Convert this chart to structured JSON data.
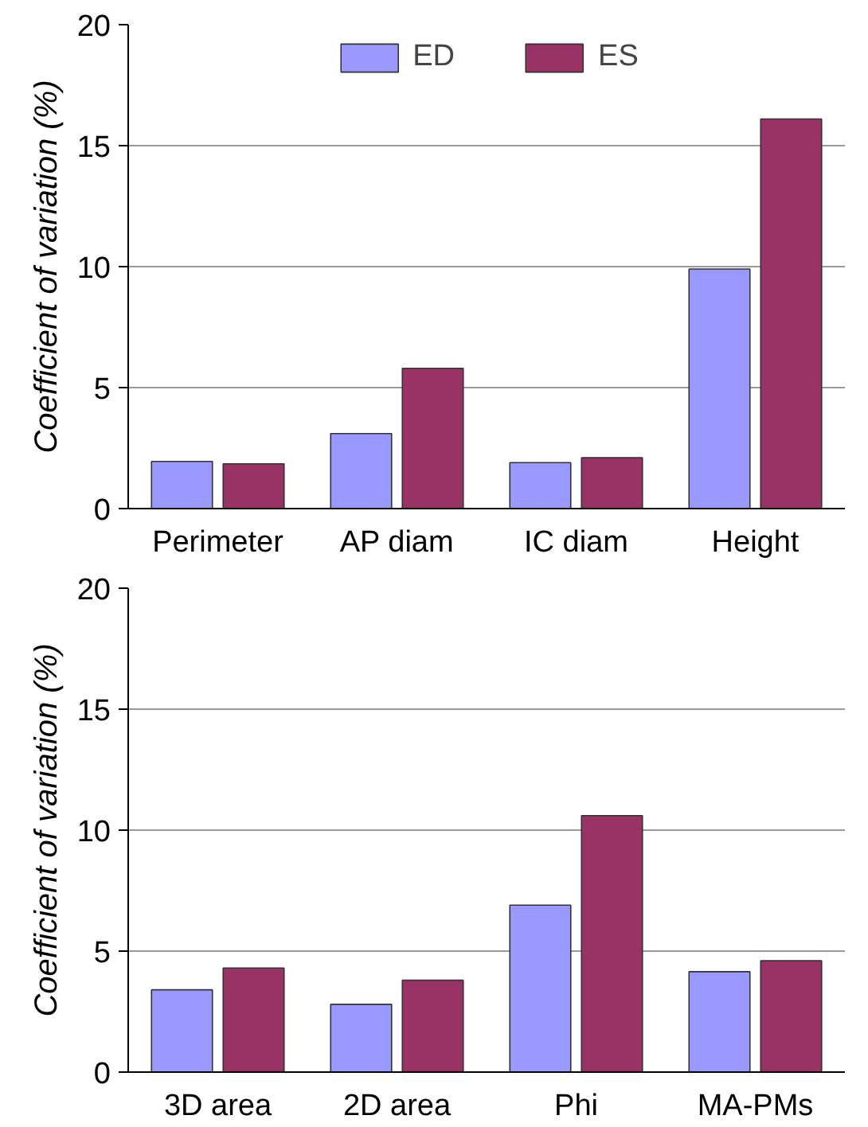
{
  "chart_data": [
    {
      "type": "bar",
      "ylabel": "Coefficient of variation (%)",
      "categories": [
        "Perimeter",
        "AP diam",
        "IC diam",
        "Height"
      ],
      "series": [
        {
          "name": "ED",
          "color": "#9999ff",
          "values": [
            1.95,
            3.1,
            1.9,
            9.9
          ]
        },
        {
          "name": "ES",
          "color": "#993366",
          "values": [
            1.85,
            5.8,
            2.1,
            16.1
          ]
        }
      ],
      "ylim": [
        0,
        20
      ],
      "yticks": [
        0,
        5,
        10,
        15,
        20
      ],
      "grid": "y",
      "legend": "top"
    },
    {
      "type": "bar",
      "ylabel": "Coefficient of variation (%)",
      "categories": [
        "3D area",
        "2D area",
        "Phi",
        "MA-PMs"
      ],
      "series": [
        {
          "color": "#9999ff",
          "values": [
            3.4,
            2.8,
            6.9,
            4.15
          ]
        },
        {
          "color": "#993366",
          "values": [
            4.3,
            3.8,
            10.6,
            4.6
          ]
        }
      ],
      "ylim": [
        0,
        20
      ],
      "yticks": [
        0,
        5,
        10,
        15,
        20
      ],
      "grid": "y"
    }
  ]
}
